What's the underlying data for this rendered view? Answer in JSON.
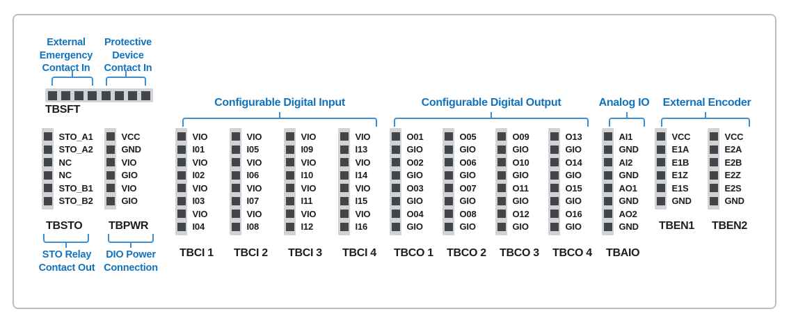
{
  "colors": {
    "accent_blue": "#1272bc",
    "bracket_blue": "#3d8ed2",
    "pin_dark": "#42454a",
    "strip_gray": "#d2d3d4"
  },
  "tbsft": {
    "name": "TBSFT",
    "pin_count": 8,
    "top_labels": [
      {
        "text": "External\nEmergency\nContact In"
      },
      {
        "text": "Protective\nDevice\nContact In"
      }
    ]
  },
  "tbsto": {
    "name": "TBSTO",
    "pins": [
      "STO_A1",
      "STO_A2",
      "NC",
      "NC",
      "STO_B1",
      "STO_B2"
    ],
    "bottom_label": "STO Relay\nContact Out"
  },
  "tbpwr": {
    "name": "TBPWR",
    "pins": [
      "VCC",
      "GND",
      "VIO",
      "GIO",
      "VIO",
      "GIO"
    ],
    "bottom_label": "DIO Power\nConnection"
  },
  "digital_input": {
    "header": "Configurable Digital Input",
    "blocks": [
      {
        "name": "TBCI 1",
        "pins": [
          "VIO",
          "I01",
          "VIO",
          "I02",
          "VIO",
          "I03",
          "VIO",
          "I04"
        ]
      },
      {
        "name": "TBCI 2",
        "pins": [
          "VIO",
          "I05",
          "VIO",
          "I06",
          "VIO",
          "I07",
          "VIO",
          "I08"
        ]
      },
      {
        "name": "TBCI 3",
        "pins": [
          "VIO",
          "I09",
          "VIO",
          "I10",
          "VIO",
          "I11",
          "VIO",
          "I12"
        ]
      },
      {
        "name": "TBCI 4",
        "pins": [
          "VIO",
          "I13",
          "VIO",
          "I14",
          "VIO",
          "I15",
          "VIO",
          "I16"
        ]
      }
    ]
  },
  "digital_output": {
    "header": "Configurable Digital Output",
    "blocks": [
      {
        "name": "TBCO 1",
        "pins": [
          "O01",
          "GIO",
          "O02",
          "GIO",
          "O03",
          "GIO",
          "O04",
          "GIO"
        ]
      },
      {
        "name": "TBCO 2",
        "pins": [
          "O05",
          "GIO",
          "O06",
          "GIO",
          "O07",
          "GIO",
          "O08",
          "GIO"
        ]
      },
      {
        "name": "TBCO 3",
        "pins": [
          "O09",
          "GIO",
          "O10",
          "GIO",
          "O11",
          "GIO",
          "O12",
          "GIO"
        ]
      },
      {
        "name": "TBCO 4",
        "pins": [
          "O13",
          "GIO",
          "O14",
          "GIO",
          "O15",
          "GIO",
          "O16",
          "GIO"
        ]
      }
    ]
  },
  "analog_io": {
    "header": "Analog IO",
    "blocks": [
      {
        "name": "TBAIO",
        "pins": [
          "AI1",
          "GND",
          "AI2",
          "GND",
          "AO1",
          "GND",
          "AO2",
          "GND"
        ]
      }
    ]
  },
  "external_encoder": {
    "header": "External Encoder",
    "blocks": [
      {
        "name": "TBEN1",
        "pins": [
          "VCC",
          "E1A",
          "E1B",
          "E1Z",
          "E1S",
          "GND"
        ]
      },
      {
        "name": "TBEN2",
        "pins": [
          "VCC",
          "E2A",
          "E2B",
          "E2Z",
          "E2S",
          "GND"
        ]
      }
    ]
  }
}
